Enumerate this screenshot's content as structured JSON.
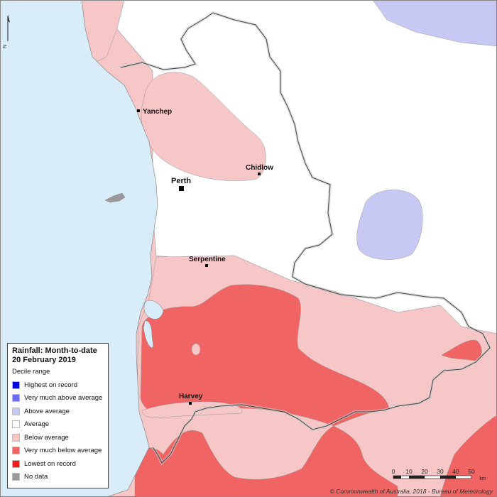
{
  "legend": {
    "title": "Rainfall: Month-to-date",
    "date": "20 February 2019",
    "subtitle": "Decile range",
    "items": [
      {
        "label": "Highest on record",
        "color": "#0000dd"
      },
      {
        "label": "Very much above average",
        "color": "#6b6bf0"
      },
      {
        "label": "Above average",
        "color": "#c8c8f5"
      },
      {
        "label": "Average",
        "color": "#ffffff"
      },
      {
        "label": "Below average",
        "color": "#f7c6c6"
      },
      {
        "label": "Very much below average",
        "color": "#f06464"
      },
      {
        "label": "Lowest on record",
        "color": "#ee1c1c"
      },
      {
        "label": "No data",
        "color": "#999999"
      }
    ]
  },
  "towns": {
    "yanchep": "Yanchep",
    "perth": "Perth",
    "chidlow": "Chidlow",
    "serpentine": "Serpentine",
    "harvey": "Harvey"
  },
  "scale": {
    "ticks": [
      "0",
      "10",
      "20",
      "30",
      "40",
      "50"
    ],
    "unit": "km"
  },
  "north_label": "N",
  "copyright": "© Commonwealth of Australia, 2018 - Bureau of Meteorology",
  "colors": {
    "ocean": "#d8ecfa",
    "below_average": "#f7c6c6",
    "very_much_below": "#f06464",
    "above_average": "#c8c8f5",
    "average": "#ffffff"
  }
}
